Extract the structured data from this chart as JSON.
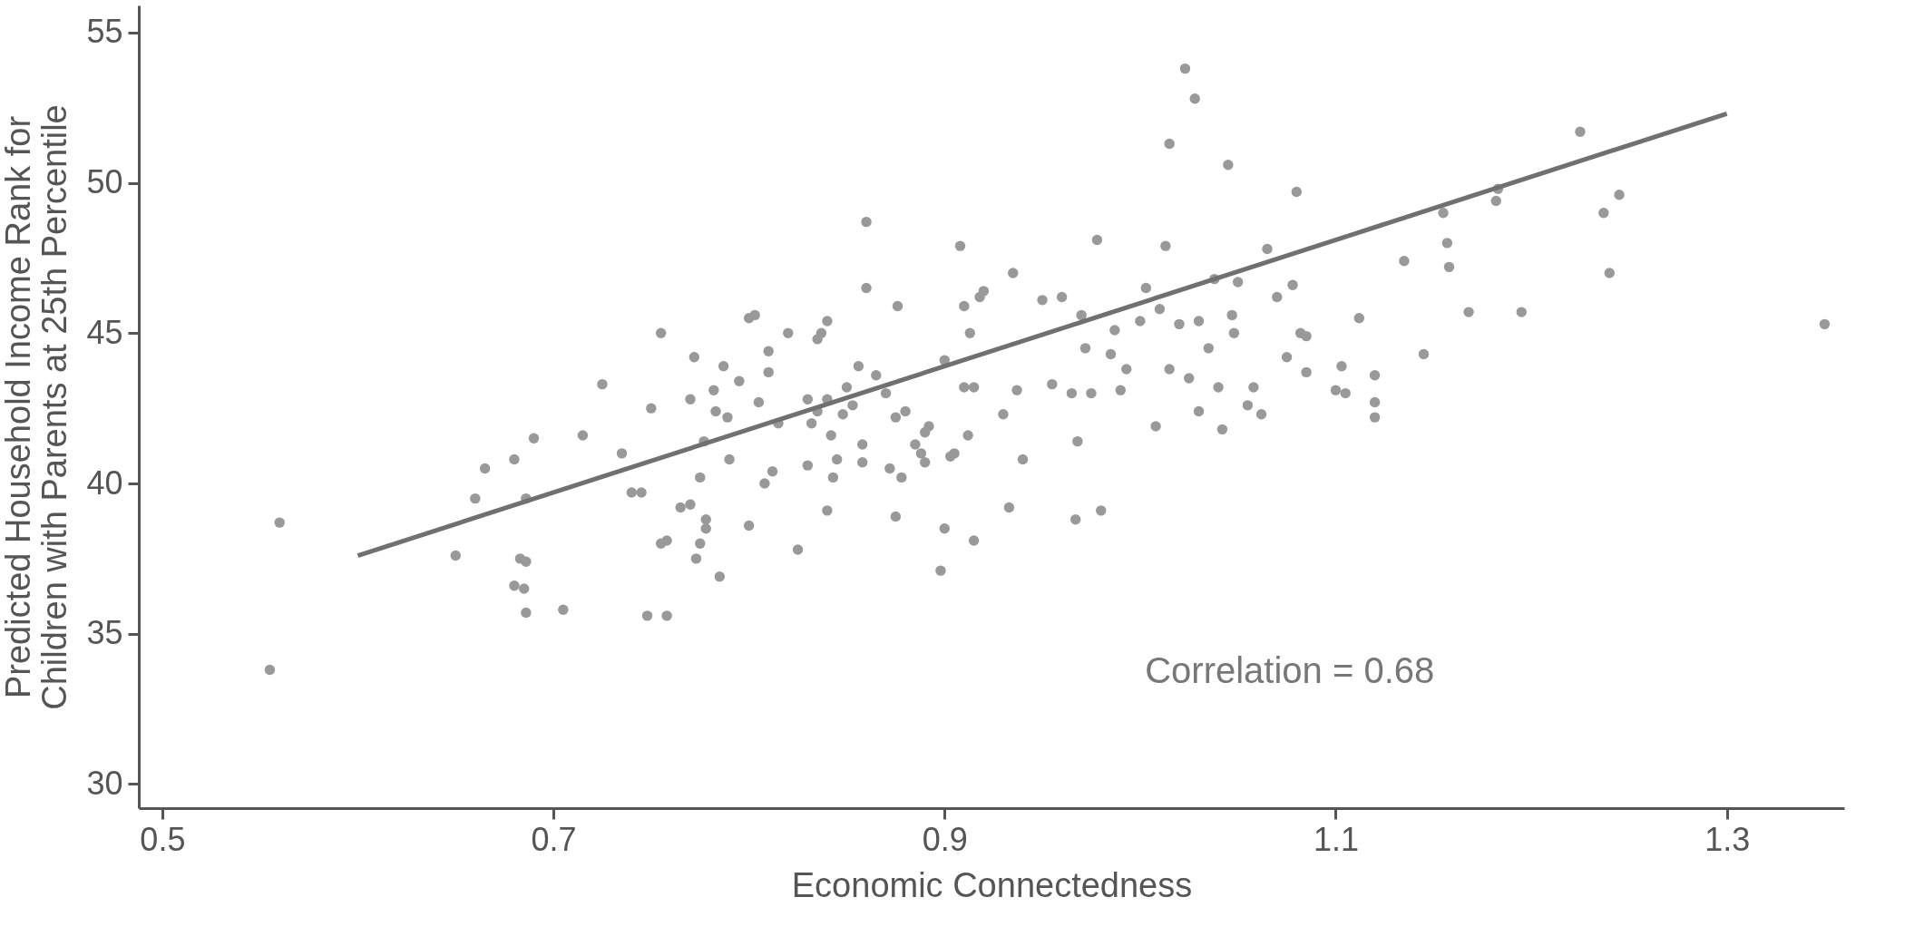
{
  "chart_data": {
    "type": "scatter",
    "xlabel": "Economic Connectedness",
    "ylabel": "Predicted Household Income Rank for\nChildren with Parents at 25th Percentile",
    "xlim": [
      0.488,
      1.36
    ],
    "xticks": [
      0.5,
      0.7,
      0.9,
      1.1,
      1.3
    ],
    "ylim": [
      29.2,
      55.9
    ],
    "yticks": [
      30,
      35,
      40,
      45,
      50,
      55
    ],
    "grid": false,
    "annotations": [
      "Correlation = 0.68"
    ],
    "series": [
      {
        "color": "#999999",
        "marker": "circle",
        "x": [
          0.555,
          0.56,
          0.65,
          0.66,
          0.665,
          0.68,
          0.68,
          0.683,
          0.685,
          0.686,
          0.686,
          0.686,
          0.69,
          0.705,
          0.715,
          0.725,
          0.735,
          0.74,
          0.745,
          0.748,
          0.75,
          0.755,
          0.755,
          0.758,
          0.758,
          0.765,
          0.77,
          0.77,
          0.772,
          0.773,
          0.775,
          0.775,
          0.777,
          0.778,
          0.778,
          0.782,
          0.783,
          0.785,
          0.787,
          0.789,
          0.79,
          0.795,
          0.8,
          0.8,
          0.803,
          0.805,
          0.808,
          0.81,
          0.81,
          0.812,
          0.815,
          0.82,
          0.825,
          0.83,
          0.83,
          0.832,
          0.835,
          0.835,
          0.837,
          0.84,
          0.84,
          0.84,
          0.842,
          0.843,
          0.845,
          0.848,
          0.85,
          0.853,
          0.856,
          0.858,
          0.858,
          0.86,
          0.86,
          0.865,
          0.87,
          0.872,
          0.875,
          0.875,
          0.876,
          0.878,
          0.88,
          0.885,
          0.888,
          0.89,
          0.89,
          0.892,
          0.898,
          0.9,
          0.9,
          0.903,
          0.905,
          0.908,
          0.91,
          0.91,
          0.912,
          0.913,
          0.915,
          0.915,
          0.918,
          0.92,
          0.93,
          0.933,
          0.935,
          0.937,
          0.94,
          0.95,
          0.955,
          0.96,
          0.965,
          0.967,
          0.968,
          0.97,
          0.972,
          0.975,
          0.978,
          0.98,
          0.985,
          0.987,
          0.99,
          0.993,
          1.0,
          1.003,
          1.008,
          1.01,
          1.013,
          1.015,
          1.015,
          1.02,
          1.023,
          1.025,
          1.028,
          1.03,
          1.03,
          1.035,
          1.038,
          1.04,
          1.042,
          1.045,
          1.047,
          1.048,
          1.05,
          1.055,
          1.058,
          1.062,
          1.065,
          1.07,
          1.075,
          1.078,
          1.08,
          1.082,
          1.085,
          1.085,
          1.1,
          1.103,
          1.105,
          1.112,
          1.12,
          1.12,
          1.12,
          1.135,
          1.145,
          1.155,
          1.157,
          1.158,
          1.168,
          1.182,
          1.183,
          1.195,
          1.225,
          1.237,
          1.24,
          1.245,
          1.35
        ],
        "values": [
          33.8,
          38.7,
          37.6,
          39.5,
          40.5,
          40.8,
          36.6,
          37.5,
          36.5,
          37.4,
          35.7,
          39.5,
          41.5,
          35.8,
          41.6,
          43.3,
          41,
          39.7,
          39.7,
          35.6,
          42.5,
          45,
          38,
          35.6,
          38.1,
          39.2,
          42.8,
          39.3,
          44.2,
          37.5,
          40.2,
          38,
          41.4,
          38.8,
          38.5,
          43.1,
          42.4,
          36.9,
          43.9,
          42.2,
          40.8,
          43.4,
          38.6,
          45.5,
          45.6,
          42.7,
          40,
          44.4,
          43.7,
          40.4,
          42,
          45,
          37.8,
          40.6,
          42.8,
          42,
          42.4,
          44.8,
          45,
          45.4,
          42.8,
          39.1,
          41.6,
          40.2,
          40.8,
          42.3,
          43.2,
          42.6,
          43.9,
          41.3,
          40.7,
          48.7,
          46.5,
          43.6,
          43,
          40.5,
          42.2,
          38.9,
          45.9,
          40.2,
          42.4,
          41.3,
          41,
          41.7,
          40.7,
          41.9,
          37.1,
          44.1,
          38.5,
          40.9,
          41,
          47.9,
          43.2,
          45.9,
          41.6,
          45,
          43.2,
          38.1,
          46.2,
          46.4,
          42.3,
          39.2,
          47,
          43.1,
          40.8,
          46.1,
          43.3,
          46.2,
          43,
          38.8,
          41.4,
          45.6,
          44.5,
          43,
          48.1,
          39.1,
          44.3,
          45.1,
          43.1,
          43.8,
          45.4,
          46.5,
          41.9,
          45.8,
          47.9,
          51.3,
          43.8,
          45.3,
          53.8,
          43.5,
          52.8,
          45.4,
          42.4,
          44.5,
          46.8,
          43.2,
          41.8,
          50.6,
          45.6,
          45,
          46.7,
          42.6,
          43.2,
          42.3,
          47.8,
          46.2,
          44.2,
          46.6,
          49.7,
          45,
          44.9,
          43.7,
          43.1,
          43.9,
          43,
          45.5,
          43.6,
          42.7,
          42.2,
          47.4,
          44.3,
          49,
          48,
          47.2,
          45.7,
          49.4,
          49.8,
          45.7,
          51.7,
          49,
          47,
          49.6,
          45.3
        ]
      },
      {
        "type": "line",
        "color": "#707070",
        "x": [
          0.6,
          1.3
        ],
        "values": [
          37.6,
          52.3
        ]
      }
    ]
  }
}
